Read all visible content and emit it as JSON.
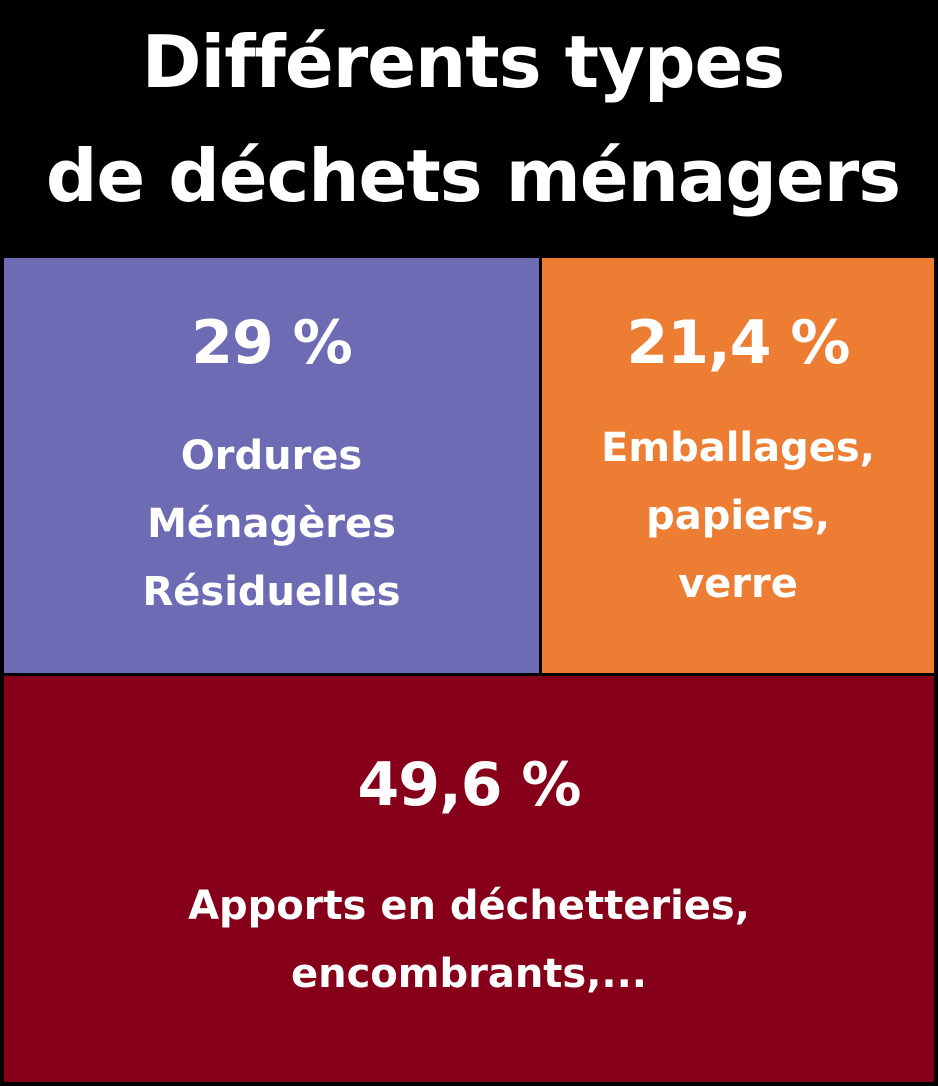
{
  "title": {
    "line1": "Différents types",
    "line2": "de déchets ménagers"
  },
  "chart_data": {
    "type": "treemap",
    "title": "Différents types de déchets ménagers",
    "unit": "%",
    "segments": [
      {
        "value": 29,
        "value_label": "29 %",
        "label": "Ordures\nMénagères\nRésiduelles",
        "color": "#6d6bb4"
      },
      {
        "value": 21.4,
        "value_label": "21,4 %",
        "label": "Emballages,\npapiers,\nverre",
        "color": "#ed7d32"
      },
      {
        "value": 49.6,
        "value_label": "49,6 %",
        "label": "Apports en déchetteries,\nencombrants,...",
        "color": "#870019"
      }
    ]
  }
}
